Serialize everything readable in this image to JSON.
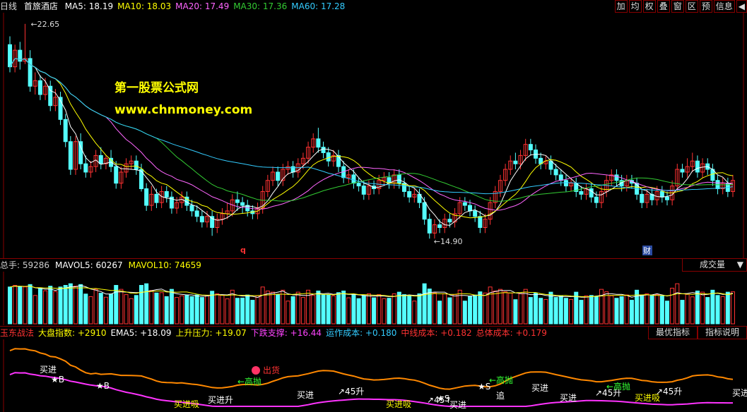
{
  "header": {
    "period": "日线",
    "stock": "首旅酒店",
    "ma": [
      {
        "label": "MA5: 18.19",
        "color": "#ffffff"
      },
      {
        "label": "MA10: 18.03",
        "color": "#ffff00"
      },
      {
        "label": "MA20: 17.49",
        "color": "#ff66ff"
      },
      {
        "label": "MA30: 17.36",
        "color": "#33cc33"
      },
      {
        "label": "MA60: 17.28",
        "color": "#33ccff"
      }
    ],
    "toolbar": [
      "加",
      "均",
      "权",
      "叠",
      "窗",
      "区",
      "预",
      "信息",
      "◀"
    ]
  },
  "watermark": {
    "line1": "第一股票公式网",
    "line2": "www.chnmoney.com"
  },
  "colors": {
    "up": "#ff3232",
    "down": "#54ffff",
    "border": "#880000"
  },
  "chart_data": {
    "type": "candlestick",
    "high_label": "22.65",
    "low_label": "14.90",
    "event_markers": [
      "q",
      "财"
    ],
    "candles": [
      [
        21.9,
        21.1,
        22.2,
        20.9
      ],
      [
        21.1,
        21.7,
        21.9,
        20.9
      ],
      [
        21.7,
        21.3,
        22.0,
        21.0
      ],
      [
        21.3,
        21.4,
        22.65,
        21.2
      ],
      [
        21.4,
        20.4,
        21.7,
        20.2
      ],
      [
        20.4,
        20.6,
        20.9,
        20.1
      ],
      [
        20.6,
        20.1,
        20.8,
        19.9
      ],
      [
        20.1,
        20.4,
        20.7,
        19.9
      ],
      [
        20.4,
        19.7,
        20.6,
        19.5
      ],
      [
        19.7,
        20.0,
        20.3,
        19.5
      ],
      [
        20.0,
        19.2,
        20.2,
        19.0
      ],
      [
        19.2,
        18.4,
        19.4,
        18.2
      ],
      [
        18.4,
        17.4,
        18.6,
        17.2
      ],
      [
        17.4,
        18.4,
        18.6,
        17.2
      ],
      [
        18.4,
        17.6,
        18.7,
        17.4
      ],
      [
        17.6,
        17.3,
        17.9,
        17.1
      ],
      [
        17.3,
        17.5,
        17.7,
        17.1
      ],
      [
        17.5,
        17.9,
        18.1,
        17.3
      ],
      [
        17.9,
        17.6,
        18.2,
        17.4
      ],
      [
        17.6,
        17.8,
        17.9,
        17.4
      ],
      [
        17.8,
        17.5,
        18.1,
        17.3
      ],
      [
        17.5,
        16.9,
        17.7,
        16.7
      ],
      [
        16.9,
        17.3,
        17.5,
        16.7
      ],
      [
        17.3,
        17.6,
        17.8,
        17.1
      ],
      [
        17.6,
        17.7,
        17.9,
        17.4
      ],
      [
        17.7,
        17.4,
        17.9,
        17.2
      ],
      [
        17.4,
        16.7,
        17.6,
        16.6
      ],
      [
        16.7,
        16.1,
        16.9,
        15.9
      ],
      [
        16.1,
        16.5,
        16.8,
        15.9
      ],
      [
        16.5,
        16.2,
        16.7,
        16.0
      ],
      [
        16.2,
        16.6,
        16.8,
        16.0
      ],
      [
        16.6,
        16.4,
        16.8,
        16.2
      ],
      [
        16.4,
        16.0,
        16.6,
        15.8
      ],
      [
        16.0,
        16.2,
        16.4,
        15.8
      ],
      [
        16.2,
        16.4,
        16.6,
        16.0
      ],
      [
        16.4,
        16.1,
        16.6,
        15.9
      ],
      [
        16.1,
        15.9,
        16.3,
        15.7
      ],
      [
        15.9,
        15.7,
        16.1,
        15.5
      ],
      [
        15.7,
        15.5,
        15.9,
        15.3
      ],
      [
        15.5,
        15.7,
        15.9,
        15.3
      ],
      [
        15.7,
        15.3,
        15.9,
        15.0
      ],
      [
        15.3,
        15.6,
        15.8,
        15.1
      ],
      [
        15.6,
        15.8,
        16.0,
        15.4
      ],
      [
        15.8,
        15.9,
        16.2,
        15.6
      ],
      [
        15.9,
        16.3,
        16.5,
        15.7
      ],
      [
        16.3,
        16.2,
        16.6,
        15.9
      ],
      [
        16.2,
        16.1,
        16.4,
        15.8
      ],
      [
        16.1,
        15.9,
        16.3,
        15.7
      ],
      [
        15.9,
        15.8,
        16.1,
        15.6
      ],
      [
        15.8,
        16.0,
        16.2,
        15.6
      ],
      [
        16.0,
        16.6,
        16.8,
        15.8
      ],
      [
        16.6,
        17.0,
        17.2,
        16.4
      ],
      [
        17.0,
        17.3,
        17.5,
        16.8
      ],
      [
        17.3,
        17.0,
        17.5,
        16.8
      ],
      [
        17.0,
        17.4,
        17.6,
        16.8
      ],
      [
        17.4,
        17.5,
        17.7,
        17.2
      ],
      [
        17.5,
        17.3,
        17.7,
        17.1
      ],
      [
        17.3,
        17.6,
        17.8,
        17.1
      ],
      [
        17.6,
        17.8,
        18.0,
        17.4
      ],
      [
        17.8,
        18.2,
        18.4,
        17.6
      ],
      [
        18.2,
        18.5,
        18.7,
        18.0
      ],
      [
        18.5,
        18.2,
        18.9,
        18.0
      ],
      [
        18.2,
        18.0,
        18.4,
        17.8
      ],
      [
        18.0,
        17.7,
        18.2,
        17.5
      ],
      [
        17.7,
        17.9,
        18.1,
        17.5
      ],
      [
        17.9,
        17.5,
        18.1,
        17.3
      ],
      [
        17.5,
        17.1,
        17.7,
        16.9
      ],
      [
        17.1,
        17.2,
        17.4,
        16.9
      ],
      [
        17.2,
        16.9,
        17.4,
        16.7
      ],
      [
        16.9,
        16.8,
        17.1,
        16.6
      ],
      [
        16.8,
        16.5,
        17.0,
        16.3
      ],
      [
        16.5,
        16.8,
        17.0,
        16.3
      ],
      [
        16.8,
        16.7,
        17.0,
        16.5
      ],
      [
        16.7,
        17.0,
        17.2,
        16.5
      ],
      [
        17.0,
        17.1,
        17.3,
        16.8
      ],
      [
        17.1,
        16.9,
        17.3,
        16.7
      ],
      [
        16.9,
        17.2,
        17.4,
        16.7
      ],
      [
        17.2,
        16.9,
        17.4,
        16.7
      ],
      [
        16.9,
        16.6,
        17.1,
        16.4
      ],
      [
        16.6,
        16.4,
        16.8,
        16.2
      ],
      [
        16.4,
        16.5,
        16.7,
        16.2
      ],
      [
        16.5,
        16.2,
        16.7,
        16.0
      ],
      [
        16.2,
        15.6,
        16.4,
        15.4
      ],
      [
        15.6,
        15.1,
        15.8,
        14.9
      ],
      [
        15.1,
        15.4,
        15.6,
        14.9
      ],
      [
        15.4,
        15.3,
        15.6,
        15.1
      ],
      [
        15.3,
        15.6,
        15.8,
        15.1
      ],
      [
        15.6,
        15.5,
        15.8,
        15.3
      ],
      [
        15.5,
        15.8,
        16.0,
        15.3
      ],
      [
        15.8,
        16.2,
        16.4,
        15.6
      ],
      [
        16.2,
        16.1,
        16.4,
        15.9
      ],
      [
        16.1,
        15.9,
        16.3,
        15.7
      ],
      [
        15.9,
        15.7,
        16.1,
        15.5
      ],
      [
        15.7,
        15.3,
        15.9,
        15.1
      ],
      [
        15.3,
        15.6,
        15.8,
        15.1
      ],
      [
        15.6,
        16.2,
        16.4,
        15.4
      ],
      [
        16.2,
        16.6,
        16.8,
        16.0
      ],
      [
        16.6,
        17.0,
        17.2,
        16.4
      ],
      [
        17.0,
        17.4,
        17.6,
        16.8
      ],
      [
        17.4,
        17.7,
        17.9,
        17.2
      ],
      [
        17.7,
        17.6,
        18.0,
        17.4
      ],
      [
        17.6,
        17.9,
        18.1,
        17.4
      ],
      [
        17.9,
        18.3,
        18.5,
        17.7
      ],
      [
        18.3,
        18.1,
        18.5,
        17.9
      ],
      [
        18.1,
        17.8,
        18.3,
        17.6
      ],
      [
        17.8,
        17.6,
        18.0,
        17.4
      ],
      [
        17.6,
        17.7,
        17.9,
        17.4
      ],
      [
        17.7,
        17.4,
        17.9,
        17.2
      ],
      [
        17.4,
        17.2,
        17.6,
        17.0
      ],
      [
        17.2,
        17.0,
        17.4,
        16.8
      ],
      [
        17.0,
        16.8,
        17.2,
        16.6
      ],
      [
        16.8,
        16.9,
        17.1,
        16.6
      ],
      [
        16.9,
        16.6,
        17.1,
        16.4
      ],
      [
        16.6,
        16.5,
        16.8,
        16.3
      ],
      [
        16.5,
        16.7,
        16.9,
        16.3
      ],
      [
        16.7,
        16.4,
        16.9,
        16.2
      ],
      [
        16.4,
        16.2,
        16.6,
        16.0
      ],
      [
        16.2,
        16.6,
        16.8,
        16.0
      ],
      [
        16.6,
        17.0,
        17.2,
        16.4
      ],
      [
        17.0,
        17.2,
        17.4,
        16.8
      ],
      [
        17.2,
        17.0,
        17.4,
        16.8
      ],
      [
        17.0,
        16.8,
        17.2,
        16.6
      ],
      [
        16.8,
        17.0,
        17.2,
        16.6
      ],
      [
        17.0,
        16.9,
        17.2,
        16.7
      ],
      [
        16.9,
        16.5,
        17.1,
        16.3
      ],
      [
        16.5,
        16.2,
        16.7,
        16.0
      ],
      [
        16.2,
        16.5,
        16.7,
        16.0
      ],
      [
        16.5,
        16.3,
        16.7,
        16.1
      ],
      [
        16.3,
        16.6,
        16.8,
        16.1
      ],
      [
        16.6,
        16.4,
        16.8,
        16.2
      ],
      [
        16.4,
        16.3,
        16.6,
        16.1
      ],
      [
        16.3,
        16.8,
        17.0,
        16.1
      ],
      [
        16.8,
        17.4,
        17.6,
        16.6
      ],
      [
        17.4,
        17.3,
        17.6,
        17.1
      ],
      [
        17.3,
        17.5,
        17.8,
        17.1
      ],
      [
        17.5,
        17.7,
        18.0,
        17.3
      ],
      [
        17.7,
        17.3,
        17.9,
        17.1
      ],
      [
        17.3,
        17.6,
        17.8,
        17.1
      ],
      [
        17.6,
        17.4,
        17.8,
        17.2
      ],
      [
        17.4,
        17.0,
        17.6,
        16.8
      ],
      [
        17.0,
        16.7,
        17.2,
        16.5
      ],
      [
        16.7,
        16.9,
        17.1,
        16.5
      ],
      [
        16.9,
        16.6,
        17.1,
        16.4
      ],
      [
        16.6,
        17.0,
        17.2,
        16.4
      ]
    ]
  },
  "volume": {
    "header": [
      {
        "label": "总手: 59286",
        "color": "#cccccc"
      },
      {
        "label": "MAVOL5: 60267",
        "color": "#ffffff"
      },
      {
        "label": "MAVOL10: 74659",
        "color": "#ffff00"
      }
    ],
    "select_label": "成交量"
  },
  "indicator": {
    "header": [
      {
        "label": "玉东战法",
        "color": "#ff3232"
      },
      {
        "label": "大盘指数: +2910",
        "color": "#ffff00"
      },
      {
        "label": "EMA5: +18.09",
        "color": "#ffffff"
      },
      {
        "label": "上升压力: +19.07",
        "color": "#ffff00"
      },
      {
        "label": "下跌支撑: +16.44",
        "color": "#ff44ff"
      },
      {
        "label": "运作成本: +0.180",
        "color": "#33ccff"
      },
      {
        "label": "中线成本: +0.182",
        "color": "#ff3232"
      },
      {
        "label": "总体成本: +0.179",
        "color": "#ff3232"
      }
    ],
    "buttons": [
      "最优指标",
      "指标说明"
    ],
    "annotations": [
      {
        "text": "买进",
        "color": "#ffffff"
      },
      {
        "text": "★B",
        "color": "#ffffff"
      },
      {
        "text": "★B",
        "color": "#ffffff"
      },
      {
        "text": "买进吸",
        "color": "#ffff00"
      },
      {
        "text": "买进升",
        "color": "#ffffff"
      },
      {
        "text": "出货",
        "color": "#ff3232"
      },
      {
        "text": "←高抛",
        "color": "#33ff33"
      },
      {
        "text": "买进",
        "color": "#ffffff"
      },
      {
        "text": "↗45升",
        "color": "#ffffff"
      },
      {
        "text": "买进吸",
        "color": "#ffff00"
      },
      {
        "text": "↗45↑",
        "color": "#ffffff"
      },
      {
        "text": "★S",
        "color": "#ffffff"
      },
      {
        "text": "买进",
        "color": "#ffffff"
      },
      {
        "text": "★S",
        "color": "#ffffff"
      },
      {
        "text": "←高抛",
        "color": "#33ff33"
      },
      {
        "text": "追",
        "color": "#ffffff"
      },
      {
        "text": "买进",
        "color": "#ffffff"
      },
      {
        "text": "买进",
        "color": "#ffffff"
      },
      {
        "text": "↗45升",
        "color": "#ffffff"
      },
      {
        "text": "←高抛",
        "color": "#33ff33"
      },
      {
        "text": "买进吸",
        "color": "#ffff00"
      },
      {
        "text": "↗45升",
        "color": "#ffffff"
      },
      {
        "text": "买进",
        "color": "#ffffff"
      }
    ]
  }
}
